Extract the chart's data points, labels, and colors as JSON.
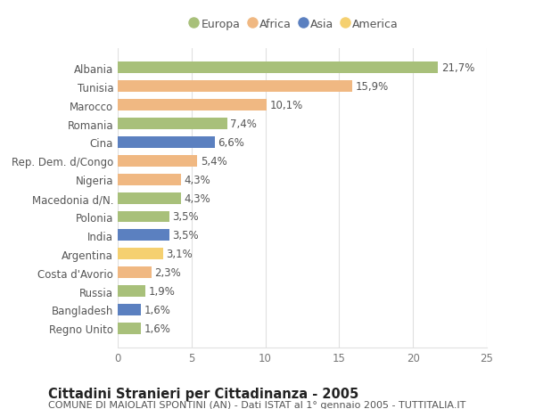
{
  "countries": [
    "Albania",
    "Tunisia",
    "Marocco",
    "Romania",
    "Cina",
    "Rep. Dem. d/Congo",
    "Nigeria",
    "Macedonia d/N.",
    "Polonia",
    "India",
    "Argentina",
    "Costa d'Avorio",
    "Russia",
    "Bangladesh",
    "Regno Unito"
  ],
  "values": [
    21.7,
    15.9,
    10.1,
    7.4,
    6.6,
    5.4,
    4.3,
    4.3,
    3.5,
    3.5,
    3.1,
    2.3,
    1.9,
    1.6,
    1.6
  ],
  "labels": [
    "21,7%",
    "15,9%",
    "10,1%",
    "7,4%",
    "6,6%",
    "5,4%",
    "4,3%",
    "4,3%",
    "3,5%",
    "3,5%",
    "3,1%",
    "2,3%",
    "1,9%",
    "1,6%",
    "1,6%"
  ],
  "colors": [
    "#a8c07a",
    "#f0b882",
    "#f0b882",
    "#a8c07a",
    "#5b80c0",
    "#f0b882",
    "#f0b882",
    "#a8c07a",
    "#a8c07a",
    "#5b80c0",
    "#f5d070",
    "#f0b882",
    "#a8c07a",
    "#5b80c0",
    "#a8c07a"
  ],
  "continents": [
    "Europa",
    "Africa",
    "Asia",
    "America"
  ],
  "legend_colors": [
    "#a8c07a",
    "#f0b882",
    "#5b80c0",
    "#f5d070"
  ],
  "title": "Cittadini Stranieri per Cittadinanza - 2005",
  "subtitle": "COMUNE DI MAIOLATI SPONTINI (AN) - Dati ISTAT al 1° gennaio 2005 - TUTTITALIA.IT",
  "xlim": [
    0,
    25
  ],
  "xticks": [
    0,
    5,
    10,
    15,
    20,
    25
  ],
  "background_color": "#ffffff",
  "grid_color": "#e0e0e0",
  "bar_height": 0.62,
  "label_fontsize": 8.5,
  "tick_fontsize": 8.5,
  "title_fontsize": 10.5,
  "subtitle_fontsize": 8.0
}
